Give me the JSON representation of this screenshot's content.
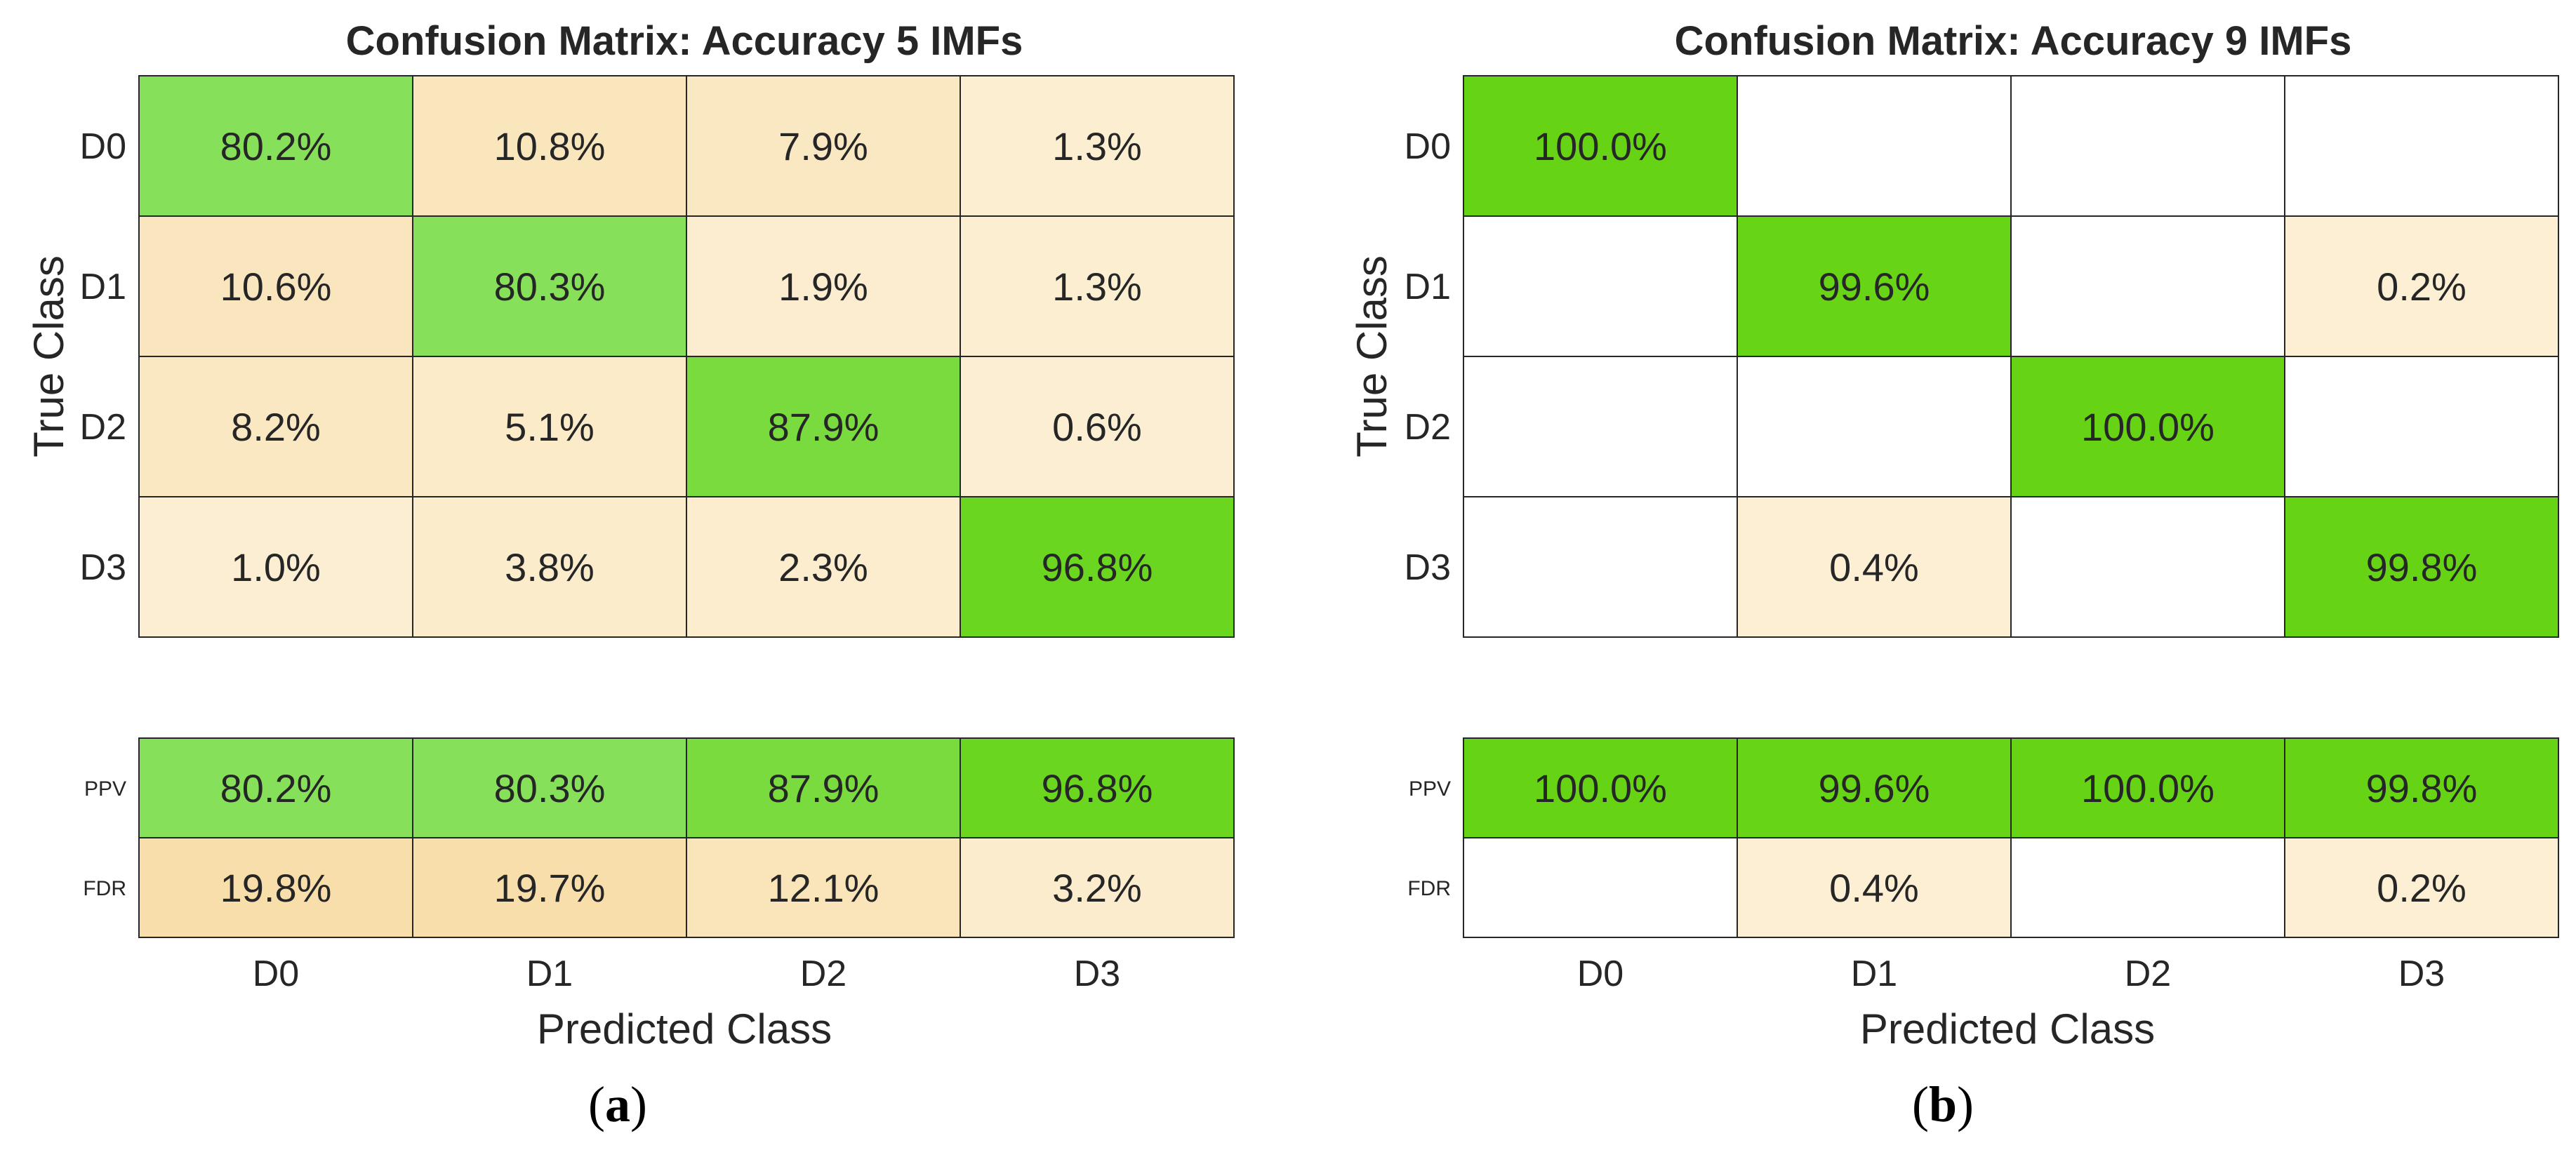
{
  "colors": {
    "correct": "#66d414",
    "incorrect": "#fbe6b8",
    "empty": "#ffffff",
    "grid": "#262626",
    "text": "#262626"
  },
  "chart_data": [
    {
      "type": "heatmap",
      "panel": "(a)",
      "panel_open": "(",
      "panel_letter": "a",
      "panel_close": ")",
      "title": "Confusion Matrix: Accuracy 5 IMFs",
      "xlabel": "Predicted Class",
      "ylabel": "True Class",
      "row_labels": [
        "D0",
        "D1",
        "D2",
        "D3"
      ],
      "col_labels": [
        "D0",
        "D1",
        "D2",
        "D3"
      ],
      "matrix": [
        [
          "80.2%",
          "10.8%",
          "7.9%",
          "1.3%"
        ],
        [
          "10.6%",
          "80.3%",
          "1.9%",
          "1.3%"
        ],
        [
          "8.2%",
          "5.1%",
          "87.9%",
          "0.6%"
        ],
        [
          "1.0%",
          "3.8%",
          "2.3%",
          "96.8%"
        ]
      ],
      "summary_labels": [
        "PPV",
        "FDR"
      ],
      "summary": [
        [
          "80.2%",
          "80.3%",
          "87.9%",
          "96.8%"
        ],
        [
          "19.8%",
          "19.7%",
          "12.1%",
          "3.2%"
        ]
      ]
    },
    {
      "type": "heatmap",
      "panel": "(b)",
      "panel_open": "(",
      "panel_letter": "b",
      "panel_close": ")",
      "title": "Confusion Matrix: Accuracy 9 IMFs",
      "xlabel": "Predicted Class",
      "ylabel": "True Class",
      "row_labels": [
        "D0",
        "D1",
        "D2",
        "D3"
      ],
      "col_labels": [
        "D0",
        "D1",
        "D2",
        "D3"
      ],
      "matrix": [
        [
          "100.0%",
          "",
          "",
          ""
        ],
        [
          "",
          "99.6%",
          "",
          "0.2%"
        ],
        [
          "",
          "",
          "100.0%",
          ""
        ],
        [
          "",
          "0.4%",
          "",
          "99.8%"
        ]
      ],
      "summary_labels": [
        "PPV",
        "FDR"
      ],
      "summary": [
        [
          "100.0%",
          "99.6%",
          "100.0%",
          "99.8%"
        ],
        [
          "",
          "0.4%",
          "",
          "0.2%"
        ]
      ]
    }
  ]
}
